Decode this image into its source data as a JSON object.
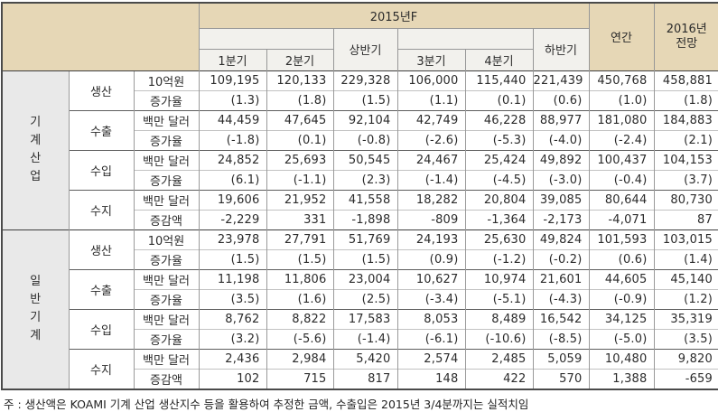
{
  "header": {
    "year_group_label": "2015년F",
    "first_half_label": "상반기",
    "second_half_label": "하반기",
    "quarter_labels": [
      "1분기",
      "2분기",
      "3분기",
      "4분기"
    ],
    "annual_label": "연간",
    "outlook_label": "2016년\n전망"
  },
  "sections": [
    {
      "name": "기계산업",
      "name_vertical": "기\n계\n산\n업",
      "groups": [
        {
          "category": "생산",
          "rows": [
            {
              "unit": "10억원",
              "values": [
                "109,195",
                "120,133",
                "229,328",
                "106,000",
                "115,440",
                "221,439",
                "450,768",
                "458,881"
              ]
            },
            {
              "unit": "증가율",
              "values": [
                "(1.3)",
                "(1.8)",
                "(1.5)",
                "(1.1)",
                "(0.1)",
                "(0.6)",
                "(1.0)",
                "(1.8)"
              ]
            }
          ]
        },
        {
          "category": "수출",
          "rows": [
            {
              "unit": "백만 달러",
              "values": [
                "44,459",
                "47,645",
                "92,104",
                "42,749",
                "46,228",
                "88,977",
                "181,080",
                "184,883"
              ]
            },
            {
              "unit": "증가율",
              "values": [
                "(-1.8)",
                "(0.1)",
                "(-0.8)",
                "(-2.6)",
                "(-5.3)",
                "(-4.0)",
                "(-2.4)",
                "(2.1)"
              ]
            }
          ]
        },
        {
          "category": "수입",
          "rows": [
            {
              "unit": "백만 달러",
              "values": [
                "24,852",
                "25,693",
                "50,545",
                "24,467",
                "25,424",
                "49,892",
                "100,437",
                "104,153"
              ]
            },
            {
              "unit": "증가율",
              "values": [
                "(6.1)",
                "(-1.1)",
                "(2.3)",
                "(-1.4)",
                "(-4.5)",
                "(-3.0)",
                "(-0.4)",
                "(3.7)"
              ]
            }
          ]
        },
        {
          "category": "수지",
          "rows": [
            {
              "unit": "백만 달러",
              "values": [
                "19,606",
                "21,952",
                "41,558",
                "18,282",
                "20,804",
                "39,085",
                "80,644",
                "80,730"
              ]
            },
            {
              "unit": "증감액",
              "values": [
                "-2,229",
                "331",
                "-1,898",
                "-809",
                "-1,364",
                "-2,173",
                "-4,071",
                "87"
              ]
            }
          ]
        }
      ]
    },
    {
      "name": "일반기계",
      "name_vertical": "일\n반\n기\n계",
      "groups": [
        {
          "category": "생산",
          "rows": [
            {
              "unit": "10억원",
              "values": [
                "23,978",
                "27,791",
                "51,769",
                "24,193",
                "25,630",
                "49,824",
                "101,593",
                "103,015"
              ]
            },
            {
              "unit": "증가율",
              "values": [
                "(1.5)",
                "(1.5)",
                "(1.5)",
                "(0.9)",
                "(-1.2)",
                "(-0.2)",
                "(0.6)",
                "(1.4)"
              ]
            }
          ]
        },
        {
          "category": "수출",
          "rows": [
            {
              "unit": "백만 달러",
              "values": [
                "11,198",
                "11,806",
                "23,004",
                "10,627",
                "10,974",
                "21,601",
                "44,605",
                "45,140"
              ]
            },
            {
              "unit": "증가율",
              "values": [
                "(3.5)",
                "(1.6)",
                "(2.5)",
                "(-3.4)",
                "(-5.1)",
                "(-4.3)",
                "(-0.9)",
                "(1.2)"
              ]
            }
          ]
        },
        {
          "category": "수입",
          "rows": [
            {
              "unit": "백만 달러",
              "values": [
                "8,762",
                "8,822",
                "17,583",
                "8,053",
                "8,489",
                "16,542",
                "34,125",
                "35,319"
              ]
            },
            {
              "unit": "증가율",
              "values": [
                "(3.2)",
                "(-5.6)",
                "(-1.4)",
                "(-6.1)",
                "(-10.6)",
                "(-8.5)",
                "(-5.0)",
                "(3.5)"
              ]
            }
          ]
        },
        {
          "category": "수지",
          "rows": [
            {
              "unit": "백만 달러",
              "values": [
                "2,436",
                "2,984",
                "5,420",
                "2,574",
                "2,485",
                "5,059",
                "10,480",
                "9,820"
              ]
            },
            {
              "unit": "증감액",
              "values": [
                "102",
                "715",
                "817",
                "148",
                "422",
                "570",
                "1,388",
                "-659"
              ]
            }
          ]
        }
      ]
    }
  ],
  "footnote": "주 : 생산액은 KOAMI 기계 산업 생산지수 등을 활용하여 추정한 금액, 수출입은 2015년 3/4분까지는 실적치임",
  "colors": {
    "header_bg": "#e6d7b6",
    "subheader_bg": "#f2f1ed",
    "section_label_bg": "#e9e9e9",
    "grid_line": "#9a9a9a",
    "group_line": "#5e5e5e",
    "text": "#2b2b2b"
  }
}
